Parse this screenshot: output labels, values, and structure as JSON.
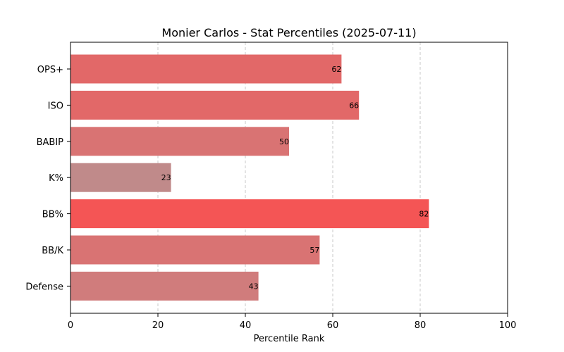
{
  "chart_data": {
    "type": "bar",
    "orientation": "horizontal",
    "title": "Monier Carlos - Stat Percentiles (2025-07-11)",
    "xlabel": "Percentile Rank",
    "ylabel": "",
    "xlim": [
      0,
      100
    ],
    "xticks": [
      "0",
      "20",
      "40",
      "60",
      "80",
      "100"
    ],
    "grid": "vertical dashed",
    "categories": [
      "OPS+",
      "ISO",
      "BABIP",
      "K%",
      "BB%",
      "BB/K",
      "Defense"
    ],
    "values": [
      62,
      66,
      50,
      23,
      82,
      57,
      43
    ],
    "data_labels": [
      "62",
      "66",
      "50",
      "23",
      "82",
      "57",
      "43"
    ],
    "bar_colors": [
      "#e26868",
      "#e26868",
      "#d97373",
      "#c08a8a",
      "#f45555",
      "#d97373",
      "#d07c7c"
    ]
  }
}
